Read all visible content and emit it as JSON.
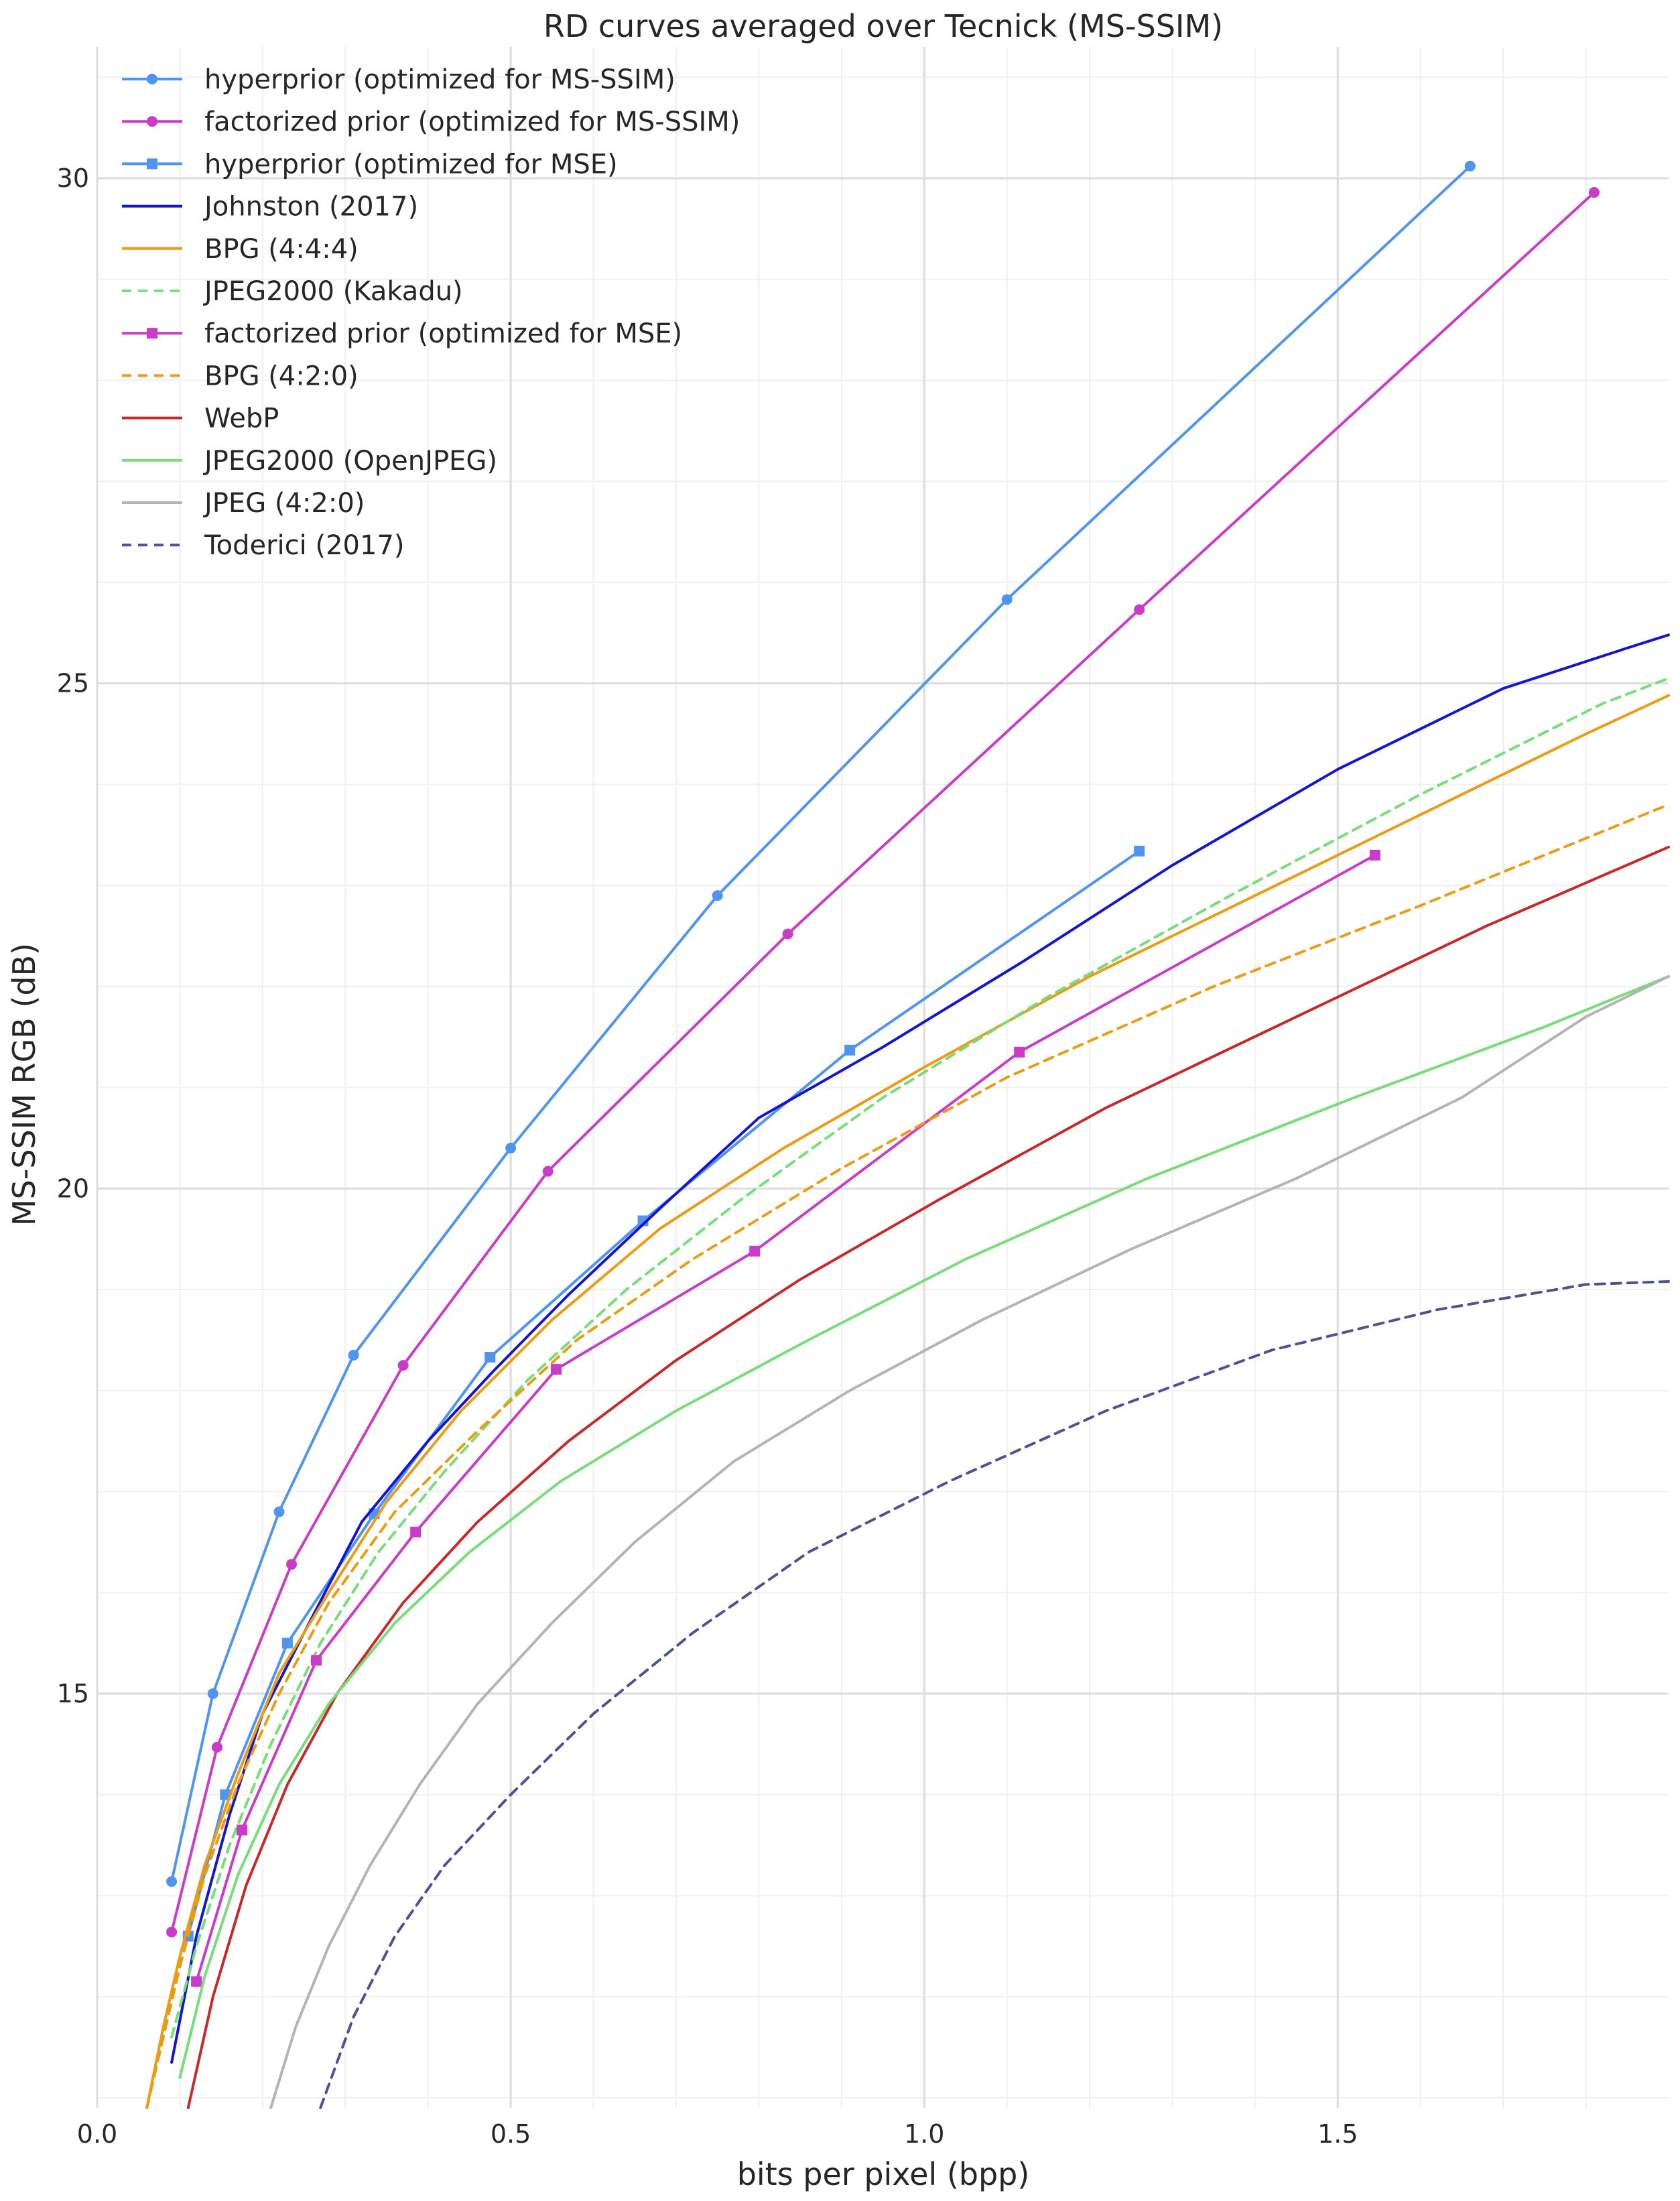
{
  "chart_data": {
    "type": "line",
    "title": "RD curves averaged over Tecnick (MS-SSIM)",
    "xlabel": "bits per pixel (bpp)",
    "ylabel": "MS-SSIM RGB (dB)",
    "xlim": [
      0.0,
      1.9
    ],
    "ylim": [
      10.9,
      31.3
    ],
    "xticks": [
      0.0,
      0.5,
      1.0,
      1.5
    ],
    "xtick_labels": [
      "0.0",
      "0.5",
      "1.0",
      "1.5"
    ],
    "yticks": [
      15,
      20,
      25,
      30
    ],
    "ytick_labels": [
      "15",
      "20",
      "25",
      "30"
    ],
    "grid": true,
    "legend_position": "top-left",
    "series": [
      {
        "name": "hyperprior (optimized for MS-SSIM)",
        "color": "#4e94f0",
        "style": "solid",
        "marker": "circle",
        "x": [
          0.09,
          0.14,
          0.22,
          0.31,
          0.5,
          0.75,
          1.1,
          1.66
        ],
        "y": [
          13.14,
          15.0,
          16.8,
          18.35,
          20.4,
          22.9,
          25.83,
          30.12
        ]
      },
      {
        "name": "factorized prior (optimized for MS-SSIM)",
        "color": "#c83cc8",
        "style": "solid",
        "marker": "circle",
        "x": [
          0.09,
          0.145,
          0.235,
          0.37,
          0.545,
          0.835,
          1.26,
          1.81
        ],
        "y": [
          12.64,
          14.47,
          16.28,
          18.25,
          20.17,
          22.52,
          25.73,
          29.86
        ]
      },
      {
        "name": "hyperprior (optimized for MSE)",
        "color": "#4e94f0",
        "style": "solid",
        "marker": "square",
        "x": [
          0.11,
          0.155,
          0.23,
          0.335,
          0.475,
          0.66,
          0.91,
          1.26
        ],
        "y": [
          12.6,
          14.0,
          15.5,
          16.78,
          18.33,
          19.68,
          21.37,
          23.34
        ]
      },
      {
        "name": "Johnston (2017)",
        "color": "#1414d2",
        "style": "solid",
        "marker": "none",
        "x": [
          0.09,
          0.12,
          0.16,
          0.2,
          0.25,
          0.32,
          0.4,
          0.48,
          0.57,
          0.68,
          0.8,
          0.95,
          1.12,
          1.3,
          1.5,
          1.7,
          1.85,
          1.9
        ],
        "y": [
          11.35,
          12.6,
          13.8,
          14.8,
          15.6,
          16.7,
          17.5,
          18.2,
          18.95,
          19.8,
          20.7,
          21.4,
          22.25,
          23.2,
          24.15,
          24.95,
          25.35,
          25.48
        ]
      },
      {
        "name": "BPG (4:4:4)",
        "color": "#eb9b14",
        "style": "solid",
        "marker": "none",
        "x": [
          0.06,
          0.08,
          0.1,
          0.13,
          0.17,
          0.22,
          0.28,
          0.35,
          0.44,
          0.55,
          0.68,
          0.83,
          1.0,
          1.2,
          1.4,
          1.6,
          1.8,
          1.9
        ],
        "y": [
          10.9,
          11.7,
          12.4,
          13.3,
          14.2,
          15.2,
          16.0,
          16.9,
          17.8,
          18.7,
          19.6,
          20.4,
          21.2,
          22.1,
          22.9,
          23.7,
          24.5,
          24.88
        ]
      },
      {
        "name": "JPEG2000 (Kakadu)",
        "color": "#78dc78",
        "style": "dashed",
        "marker": "none",
        "x": [
          0.09,
          0.12,
          0.16,
          0.21,
          0.27,
          0.34,
          0.42,
          0.52,
          0.64,
          0.78,
          0.95,
          1.15,
          1.37,
          1.6,
          1.82,
          1.9
        ],
        "y": [
          11.6,
          12.5,
          13.5,
          14.5,
          15.5,
          16.4,
          17.2,
          18.1,
          19.0,
          19.9,
          20.9,
          21.9,
          22.9,
          23.9,
          24.8,
          25.05
        ]
      },
      {
        "name": "factorized prior (optimized for MSE)",
        "color": "#c83cc8",
        "style": "solid",
        "marker": "square",
        "x": [
          0.12,
          0.175,
          0.265,
          0.385,
          0.555,
          0.795,
          1.115,
          1.545
        ],
        "y": [
          12.15,
          13.65,
          15.33,
          16.6,
          18.21,
          19.38,
          21.35,
          23.3
        ]
      },
      {
        "name": "BPG (4:2:0)",
        "color": "#eb9b14",
        "style": "dashed",
        "marker": "none",
        "x": [
          0.06,
          0.08,
          0.1,
          0.13,
          0.17,
          0.22,
          0.28,
          0.36,
          0.46,
          0.58,
          0.72,
          0.9,
          1.1,
          1.35,
          1.6,
          1.9
        ],
        "y": [
          10.9,
          11.6,
          12.3,
          13.2,
          14.1,
          15.0,
          15.9,
          16.8,
          17.6,
          18.5,
          19.3,
          20.2,
          21.1,
          22.0,
          22.8,
          23.8
        ]
      },
      {
        "name": "WebP",
        "color": "#c82828",
        "style": "solid",
        "marker": "none",
        "x": [
          0.11,
          0.14,
          0.18,
          0.23,
          0.29,
          0.37,
          0.46,
          0.57,
          0.7,
          0.85,
          1.02,
          1.22,
          1.45,
          1.68,
          1.9
        ],
        "y": [
          10.9,
          12.0,
          13.1,
          14.1,
          15.0,
          15.9,
          16.7,
          17.5,
          18.3,
          19.1,
          19.9,
          20.8,
          21.7,
          22.6,
          23.38
        ]
      },
      {
        "name": "JPEG2000 (OpenJPEG)",
        "color": "#78dc78",
        "style": "solid",
        "marker": "none",
        "x": [
          0.1,
          0.13,
          0.17,
          0.22,
          0.28,
          0.36,
          0.45,
          0.56,
          0.7,
          0.86,
          1.05,
          1.27,
          1.52,
          1.75,
          1.9
        ],
        "y": [
          11.2,
          12.2,
          13.2,
          14.1,
          14.9,
          15.7,
          16.4,
          17.1,
          17.8,
          18.5,
          19.3,
          20.1,
          20.9,
          21.6,
          22.1
        ]
      },
      {
        "name": "JPEG (4:2:0)",
        "color": "#b4b4b4",
        "style": "solid",
        "marker": "none",
        "x": [
          0.21,
          0.24,
          0.28,
          0.33,
          0.39,
          0.46,
          0.55,
          0.65,
          0.77,
          0.91,
          1.07,
          1.25,
          1.45,
          1.65,
          1.8,
          1.9
        ],
        "y": [
          10.9,
          11.7,
          12.5,
          13.3,
          14.1,
          14.9,
          15.7,
          16.5,
          17.3,
          18.0,
          18.7,
          19.4,
          20.1,
          20.9,
          21.7,
          22.1
        ]
      },
      {
        "name": "Toderici (2017)",
        "color": "#505096",
        "style": "dashed",
        "marker": "none",
        "x": [
          0.27,
          0.31,
          0.36,
          0.42,
          0.5,
          0.6,
          0.72,
          0.86,
          1.03,
          1.22,
          1.42,
          1.62,
          1.8,
          1.9
        ],
        "y": [
          10.9,
          11.8,
          12.6,
          13.3,
          14.0,
          14.8,
          15.6,
          16.4,
          17.1,
          17.8,
          18.4,
          18.8,
          19.05,
          19.08
        ]
      }
    ]
  }
}
